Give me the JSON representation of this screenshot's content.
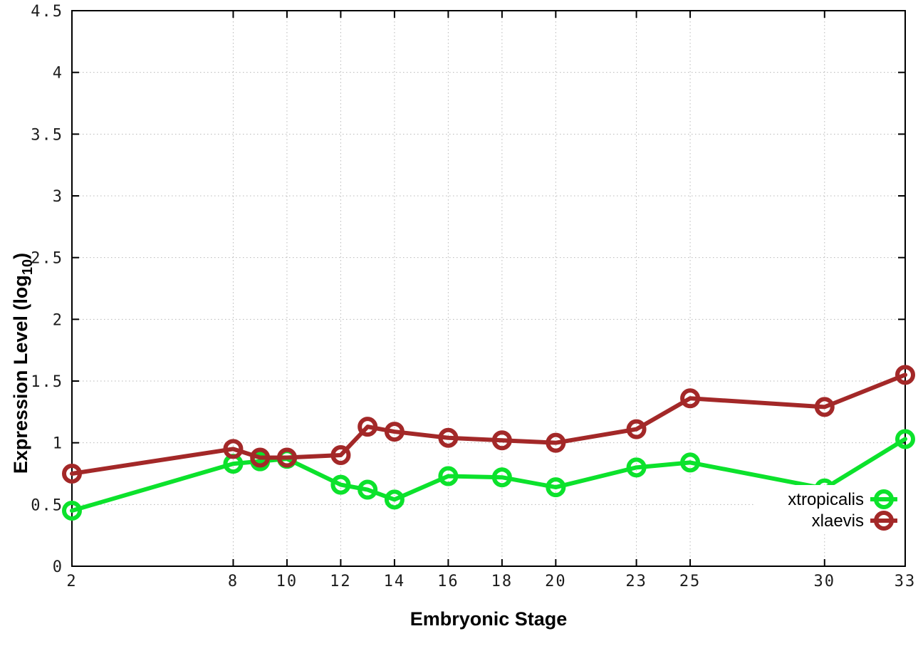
{
  "chart_data": {
    "type": "line",
    "title": "",
    "xlabel": "Embryonic Stage",
    "ylabel": {
      "pre": "Expression Level (log",
      "sub": "10",
      "post": ")"
    },
    "xlim": [
      2,
      33
    ],
    "ylim": [
      0,
      4.5
    ],
    "grid": true,
    "legend_position": "inside-bottom-right",
    "x_ticks": [
      2,
      8,
      10,
      12,
      14,
      16,
      18,
      20,
      23,
      25,
      30,
      33
    ],
    "x_tick_labels": [
      "2",
      "8",
      "10",
      "12",
      "14",
      "16",
      "18",
      "20",
      "23",
      "25",
      "30",
      "33"
    ],
    "y_ticks": [
      0,
      0.5,
      1,
      1.5,
      2,
      2.5,
      3,
      3.5,
      4,
      4.5
    ],
    "y_tick_labels": [
      "0",
      "0.5",
      "1",
      "1.5",
      "2",
      "2.5",
      "3",
      "3.5",
      "4",
      "4.5"
    ],
    "x": [
      2,
      8,
      9,
      10,
      12,
      13,
      14,
      16,
      18,
      20,
      23,
      25,
      30,
      33
    ],
    "series": [
      {
        "name": "xtropicalis",
        "color": "#0ce22c",
        "values": [
          0.45,
          0.83,
          0.85,
          0.87,
          0.66,
          0.62,
          0.54,
          0.73,
          0.72,
          0.64,
          0.8,
          0.84,
          0.63,
          1.03
        ]
      },
      {
        "name": "xlaevis",
        "color": "#a32828",
        "values": [
          0.75,
          0.95,
          0.88,
          0.88,
          0.9,
          1.13,
          1.09,
          1.04,
          1.02,
          1.0,
          1.11,
          1.36,
          1.29,
          1.55
        ]
      }
    ],
    "colors": {
      "border": "#000000",
      "grid": "#b8b8b8",
      "background": "#ffffff",
      "tick_text": "#1c1c1c"
    }
  }
}
